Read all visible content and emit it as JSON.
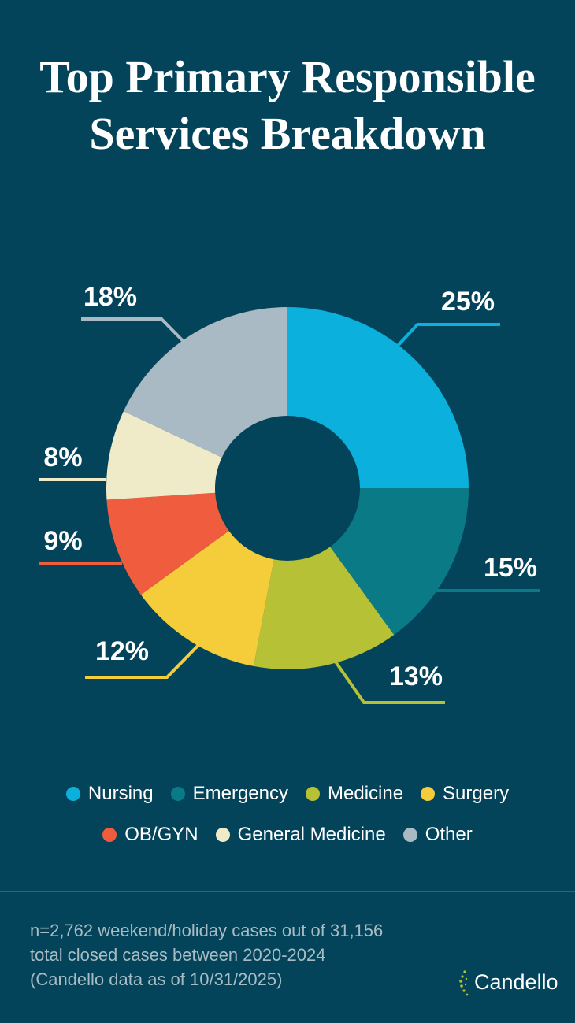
{
  "chart_data": {
    "type": "donut",
    "title": "Top Primary Responsible Services Breakdown",
    "categories": [
      "Nursing",
      "Emergency",
      "Medicine",
      "Surgery",
      "OB/GYN",
      "General Medicine",
      "Other"
    ],
    "values": [
      25,
      15,
      13,
      12,
      9,
      8,
      18
    ],
    "value_labels": [
      "25%",
      "15%",
      "13%",
      "12%",
      "9%",
      "8%",
      "18%"
    ],
    "colors": [
      "#0bb0dc",
      "#0b7a87",
      "#b6c136",
      "#f5cd3a",
      "#f05d3e",
      "#efebc8",
      "#a9bac4"
    ],
    "legend": "bottom"
  },
  "footnote": [
    "n=2,762 weekend/holiday cases out of 31,156",
    "total closed cases between 2020-2024",
    "(Candello data as of 10/31/2025)"
  ],
  "brand": "Candello"
}
